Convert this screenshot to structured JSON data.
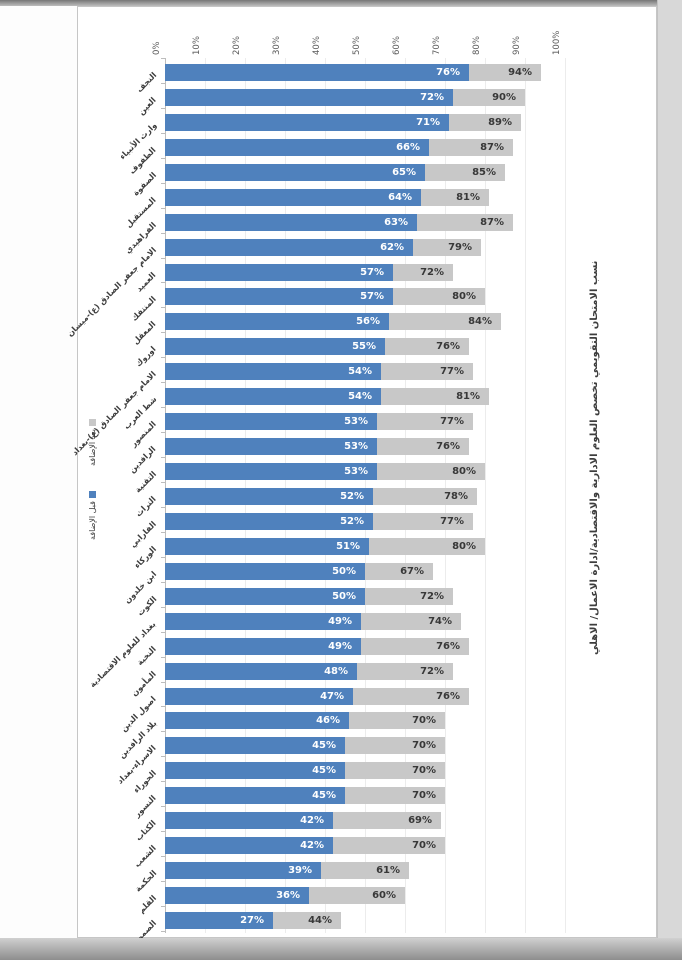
{
  "chart_data": {
    "type": "bar",
    "orientation": "horizontal bars, whole chart printed rotated 90° (axis labels and title read vertically)",
    "title": "نسب الامتحان التقويمي تخصص العلوم الادارية والاقتصادية/ادارة الاعمال/ الاهلي",
    "title_position": "right edge, rotated",
    "legend_position": "left middle, rotated",
    "legend": [
      {
        "label": "بعد الإضافة",
        "color": "#c8c8c8"
      },
      {
        "label": "قبل الإضافة",
        "color": "#4f81bd"
      }
    ],
    "axis": {
      "ticks": [
        "0%",
        "10%",
        "20%",
        "30%",
        "40%",
        "50%",
        "60%",
        "70%",
        "80%",
        "90%",
        "100%"
      ],
      "min": 0,
      "max": 100,
      "grid": true
    },
    "value_labels_shown": true,
    "categories": [
      "النجف",
      "العين",
      "وارث الأنبياء",
      "الطفوف",
      "الصفوة",
      "المستقبل",
      "الفراهيدي",
      "الامام جعفر الصادق (ع)-ميسان",
      "العميد",
      "المنتفك",
      "المعقل",
      "اوروك",
      "الامام جعفر الصادق (ع)-بغداد",
      "شط العرب",
      "المنصور",
      "الرافدين",
      "التقنية",
      "التراث",
      "الفارابي",
      "الوركاء",
      "ابن خلدون",
      "الكوت",
      "بغداد للعلوم الاقتصادية",
      "النخبة",
      "المأمون",
      "اصول الدين",
      "بلاد الرافدين",
      "الاسراء-بغداد",
      "الحوراء",
      "النسور",
      "الكتاب",
      "الشعب",
      "الحكمة",
      "القلم",
      "الصمود"
    ],
    "series": [
      {
        "name": "قبل الإضافة",
        "color": "#4f81bd",
        "values": [
          76,
          72,
          71,
          66,
          65,
          64,
          63,
          62,
          57,
          57,
          56,
          55,
          54,
          54,
          53,
          53,
          53,
          52,
          52,
          51,
          50,
          50,
          49,
          49,
          48,
          47,
          46,
          45,
          45,
          45,
          42,
          42,
          39,
          36,
          27
        ]
      },
      {
        "name": "بعد الإضافة",
        "color": "#c8c8c8",
        "values": [
          94,
          90,
          89,
          87,
          85,
          81,
          87,
          79,
          72,
          80,
          84,
          76,
          77,
          81,
          77,
          76,
          80,
          78,
          77,
          80,
          67,
          72,
          74,
          76,
          72,
          76,
          70,
          70,
          70,
          70,
          69,
          70,
          61,
          60,
          44
        ]
      }
    ]
  }
}
